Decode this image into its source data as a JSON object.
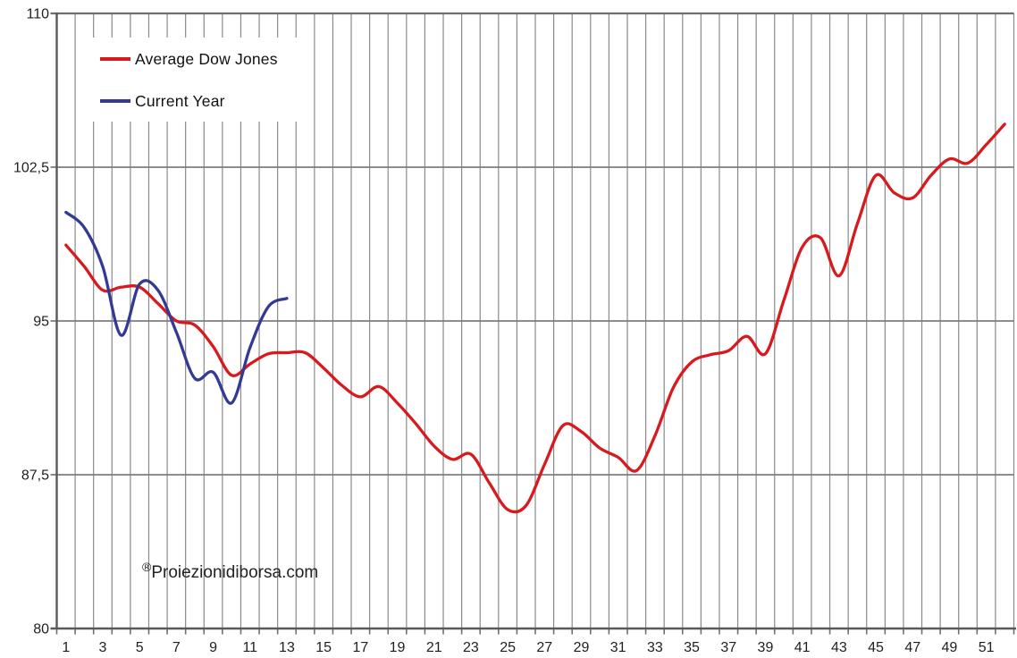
{
  "chart_data": {
    "type": "line",
    "title": "",
    "smooth_lines": true,
    "legend_position": "top-left",
    "grid": {
      "vertical": true,
      "horizontal": true
    },
    "x_axis": {
      "label": "",
      "categories_count": 52,
      "tick_labels": [
        1,
        3,
        5,
        7,
        9,
        11,
        13,
        15,
        17,
        19,
        21,
        23,
        25,
        27,
        29,
        31,
        33,
        35,
        37,
        39,
        41,
        43,
        45,
        47,
        49,
        51
      ]
    },
    "y_axis": {
      "label": "",
      "min": 80,
      "max": 110,
      "ticks": [
        {
          "label": "110",
          "value": 110
        },
        {
          "label": "102,5",
          "value": 102.5
        },
        {
          "label": "95",
          "value": 95
        },
        {
          "label": "87,5",
          "value": 87.5
        },
        {
          "label": "80",
          "value": 80
        }
      ]
    },
    "series": [
      {
        "name": "Average Dow Jones",
        "color": "#d8191d",
        "start_week": 1,
        "values": [
          98.7,
          97.65,
          96.5,
          96.65,
          96.65,
          95.85,
          95.0,
          94.8,
          93.75,
          92.35,
          92.9,
          93.4,
          93.45,
          93.45,
          92.7,
          91.85,
          91.3,
          91.8,
          91.0,
          90.0,
          88.9,
          88.25,
          88.5,
          87.1,
          85.8,
          86.0,
          88.0,
          89.9,
          89.6,
          88.8,
          88.35,
          87.7,
          89.4,
          91.75,
          93.0,
          93.35,
          93.55,
          94.25,
          93.4,
          96.0,
          98.6,
          99.05,
          97.2,
          99.75,
          102.1,
          101.25,
          101.0,
          102.1,
          102.9,
          102.7,
          103.6,
          104.6
        ]
      },
      {
        "name": "Current Year",
        "color": "#333a94",
        "start_week": 1,
        "values": [
          100.3,
          99.55,
          97.65,
          94.3,
          96.8,
          96.5,
          94.45,
          92.2,
          92.5,
          91.0,
          93.7,
          95.7,
          96.1
        ]
      }
    ]
  },
  "watermark": {
    "symbol": "®",
    "text": "Proiezionidiborsa.com"
  }
}
